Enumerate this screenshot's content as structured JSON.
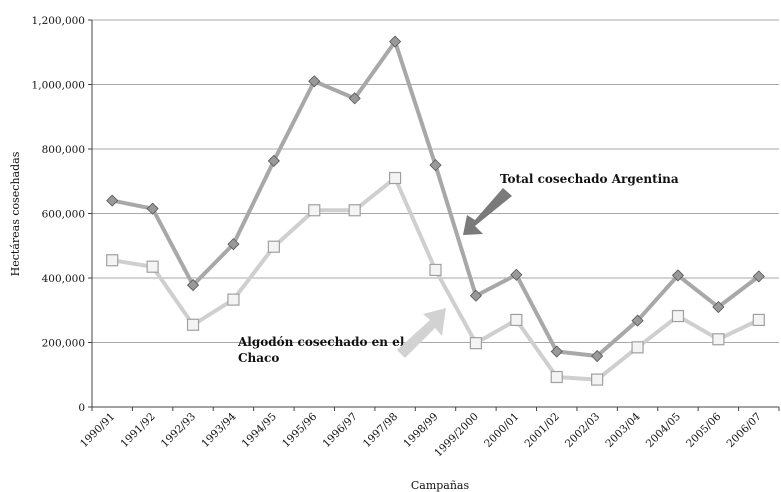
{
  "chart_data": {
    "type": "line",
    "xlabel": "Campañas",
    "ylabel": "Hectáreas cosechadas",
    "ylim": [
      0,
      1200000
    ],
    "yticks": [
      0,
      200000,
      400000,
      600000,
      800000,
      1000000,
      1200000
    ],
    "ytick_labels": [
      "0",
      "200,000",
      "400,000",
      "600,000",
      "800,000",
      "1,000,000",
      "1,200,000"
    ],
    "grid": true,
    "categories": [
      "1990/91",
      "1991/92",
      "1992/93",
      "1993/94",
      "1994/95",
      "1995/96",
      "1996/97",
      "1997/98",
      "1998/99",
      "1999/2000",
      "2000/01",
      "2001/02",
      "2002/03",
      "2003/04",
      "2004/05",
      "2005/06",
      "2006/07"
    ],
    "series": [
      {
        "name": "Total cosechado Argentina",
        "marker": "diamond",
        "color": "#a8a8a8",
        "markerFill": "#999999",
        "values": [
          640000,
          615000,
          378000,
          505000,
          763000,
          1010000,
          957000,
          1133000,
          750000,
          345000,
          410000,
          172000,
          158000,
          268000,
          408000,
          310000,
          405000
        ]
      },
      {
        "name": "Algodón cosechado en el Chaco",
        "marker": "square",
        "color": "#cfcfcf",
        "markerFill": "#f4f4f4",
        "values": [
          455000,
          435000,
          255000,
          333000,
          497000,
          610000,
          610000,
          710000,
          425000,
          198000,
          270000,
          93000,
          85000,
          185000,
          282000,
          210000,
          270000
        ]
      }
    ],
    "annotations": [
      {
        "text": "Total cosechado Argentina"
      },
      {
        "text_line1": "Algodón cosechado en el",
        "text_line2": "Chaco"
      }
    ]
  }
}
